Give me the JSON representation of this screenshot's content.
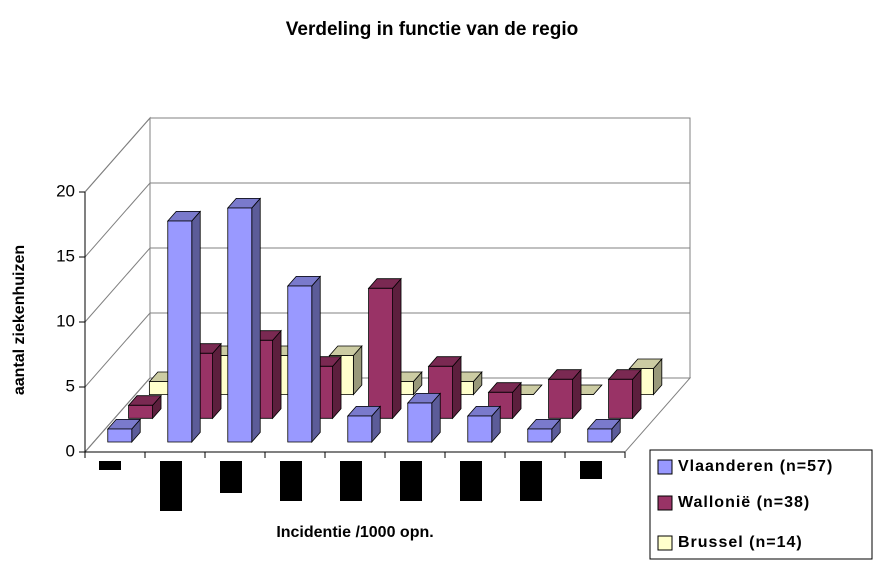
{
  "chart_data": {
    "type": "bar3d",
    "title": "Verdeling in functie van de regio",
    "xlabel": "Incidentie /1000 opn.",
    "ylabel": "aantal ziekenhuizen",
    "categories": [
      null,
      null,
      null,
      null,
      null,
      null,
      null,
      null,
      null
    ],
    "series": [
      {
        "name": "Vlaanderen (n=57)",
        "color": "#9999ff",
        "values": [
          1,
          17,
          18,
          12,
          2,
          3,
          2,
          1,
          1
        ]
      },
      {
        "name": "Wallonië (n=38)",
        "color": "#993366",
        "values": [
          1,
          5,
          6,
          4,
          10,
          4,
          2,
          3,
          3
        ]
      },
      {
        "name": "Brussel (n=14)",
        "color": "#ffffcc",
        "values": [
          1,
          3,
          3,
          3,
          1,
          1,
          0,
          0,
          2
        ]
      }
    ],
    "ylim": [
      0,
      20
    ],
    "yticks": [
      0,
      5,
      10,
      15,
      20
    ],
    "grid": true,
    "legend": "lower right"
  }
}
